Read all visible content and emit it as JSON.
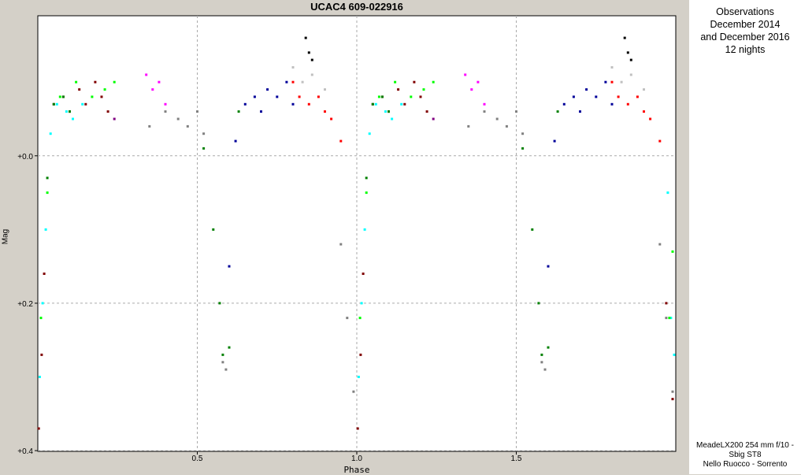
{
  "chart_data": {
    "type": "scatter",
    "title": "UCAC4 609-022916",
    "xlabel": "Phase",
    "ylabel": "Mag",
    "xlim": [
      0.0,
      2.0
    ],
    "ylim": [
      -0.19,
      0.401
    ],
    "y_inverted": true,
    "x_ticks": [
      "0.5",
      "1.0",
      "1.5"
    ],
    "x_tick_values": [
      0.5,
      1.0,
      1.5
    ],
    "y_ticks": [
      "+0.0",
      "+0.2",
      "+0.4"
    ],
    "y_tick_values": [
      0.0,
      0.2,
      0.4
    ],
    "grid": true,
    "light_curve_model": {
      "out_of_eclipse_mag": -0.075,
      "primary_minimum": {
        "phase": 0.0,
        "mag": 0.375
      },
      "secondary_minimum": {
        "phase": 0.585,
        "mag": 0.29
      }
    },
    "series": [
      {
        "color": "#800000",
        "x": [
          0.003,
          0.012,
          0.02,
          0.05,
          0.08,
          0.1,
          0.13,
          0.15,
          0.18,
          0.2,
          0.22,
          1.003,
          1.012,
          1.02,
          1.05,
          1.08,
          1.1,
          1.13,
          1.15,
          1.18,
          1.2,
          1.22,
          1.97,
          1.99
        ],
        "y": [
          0.37,
          0.27,
          0.16,
          -0.07,
          -0.08,
          -0.06,
          -0.09,
          -0.07,
          -0.1,
          -0.08,
          -0.06,
          0.37,
          0.27,
          0.16,
          -0.07,
          -0.08,
          -0.06,
          -0.09,
          -0.07,
          -0.1,
          -0.08,
          -0.06,
          0.2,
          0.33
        ]
      },
      {
        "color": "#00ffff",
        "x": [
          0.006,
          0.015,
          0.025,
          0.04,
          0.06,
          0.09,
          0.11,
          0.14,
          1.006,
          1.015,
          1.025,
          1.04,
          1.06,
          1.09,
          1.11,
          1.14,
          1.975,
          1.985,
          1.995
        ],
        "y": [
          0.3,
          0.2,
          0.1,
          -0.03,
          -0.07,
          -0.06,
          -0.05,
          -0.07,
          0.3,
          0.2,
          0.1,
          -0.03,
          -0.07,
          -0.06,
          -0.05,
          -0.07,
          0.05,
          0.22,
          0.27
        ]
      },
      {
        "color": "#00ff00",
        "x": [
          0.01,
          0.03,
          0.07,
          0.12,
          0.17,
          0.21,
          0.24,
          1.01,
          1.03,
          1.07,
          1.12,
          1.17,
          1.21,
          1.24,
          1.98,
          1.99
        ],
        "y": [
          0.22,
          0.05,
          -0.08,
          -0.1,
          -0.08,
          -0.09,
          -0.1,
          0.22,
          0.05,
          -0.08,
          -0.1,
          -0.08,
          -0.09,
          -0.1,
          0.22,
          0.13
        ]
      },
      {
        "color": "#008000",
        "x": [
          0.03,
          0.05,
          0.08,
          0.1,
          0.52,
          0.55,
          0.57,
          0.58,
          0.6,
          0.63,
          1.03,
          1.05,
          1.08,
          1.1,
          1.52,
          1.55,
          1.57,
          1.58,
          1.6,
          1.63
        ],
        "y": [
          0.03,
          -0.07,
          -0.08,
          -0.06,
          -0.01,
          0.1,
          0.2,
          0.27,
          0.26,
          -0.06,
          0.03,
          -0.07,
          -0.08,
          -0.06,
          -0.01,
          0.1,
          0.2,
          0.27,
          0.26,
          -0.06
        ]
      },
      {
        "color": "#ff00ff",
        "x": [
          0.34,
          0.36,
          0.38,
          0.4,
          1.34,
          1.36,
          1.38,
          1.4
        ],
        "y": [
          -0.11,
          -0.09,
          -0.1,
          -0.07,
          -0.11,
          -0.09,
          -0.1,
          -0.07
        ]
      },
      {
        "color": "#808080",
        "x": [
          0.35,
          0.4,
          0.44,
          0.47,
          0.5,
          0.52,
          0.58,
          0.59,
          0.95,
          0.97,
          0.99,
          1.35,
          1.4,
          1.44,
          1.47,
          1.5,
          1.52,
          1.58,
          1.59,
          1.95,
          1.97,
          1.99
        ],
        "y": [
          -0.04,
          -0.06,
          -0.05,
          -0.04,
          -0.06,
          -0.03,
          0.28,
          0.29,
          0.12,
          0.22,
          0.32,
          -0.04,
          -0.06,
          -0.05,
          -0.04,
          -0.06,
          -0.03,
          0.28,
          0.29,
          0.12,
          0.22,
          0.32
        ]
      },
      {
        "color": "#000099",
        "x": [
          0.6,
          0.62,
          0.65,
          0.68,
          0.7,
          0.72,
          0.75,
          0.78,
          0.8,
          1.6,
          1.62,
          1.65,
          1.68,
          1.7,
          1.72,
          1.75,
          1.78,
          1.8
        ],
        "y": [
          0.15,
          -0.02,
          -0.07,
          -0.08,
          -0.06,
          -0.09,
          -0.08,
          -0.1,
          -0.07,
          0.15,
          -0.02,
          -0.07,
          -0.08,
          -0.06,
          -0.09,
          -0.08,
          -0.1,
          -0.07
        ]
      },
      {
        "color": "#ff0000",
        "x": [
          0.8,
          0.82,
          0.85,
          0.88,
          0.9,
          0.92,
          0.95,
          1.8,
          1.82,
          1.85,
          1.88,
          1.9,
          1.92,
          1.95
        ],
        "y": [
          -0.1,
          -0.08,
          -0.07,
          -0.08,
          -0.06,
          -0.05,
          -0.02,
          -0.1,
          -0.08,
          -0.07,
          -0.08,
          -0.06,
          -0.05,
          -0.02
        ]
      },
      {
        "color": "#c0c0c0",
        "x": [
          0.8,
          0.83,
          0.86,
          0.9,
          1.8,
          1.83,
          1.86,
          1.9
        ],
        "y": [
          -0.12,
          -0.1,
          -0.11,
          -0.09,
          -0.12,
          -0.1,
          -0.11,
          -0.09
        ]
      },
      {
        "color": "#000000",
        "x": [
          0.84,
          0.85,
          0.86,
          1.84,
          1.85,
          1.86
        ],
        "y": [
          -0.16,
          -0.14,
          -0.13,
          -0.16,
          -0.14,
          -0.13
        ]
      },
      {
        "color": "#800080",
        "x": [
          0.24,
          1.24
        ],
        "y": [
          -0.05,
          -0.05
        ]
      }
    ]
  },
  "info": {
    "lines": [
      "Observations",
      "December 2014",
      "and December 2016",
      "12 nights"
    ],
    "credit_lines": [
      "MeadeLX200 254 mm f/10 -",
      "Sbig ST8",
      "Nello Ruocco - Sorrento"
    ]
  }
}
